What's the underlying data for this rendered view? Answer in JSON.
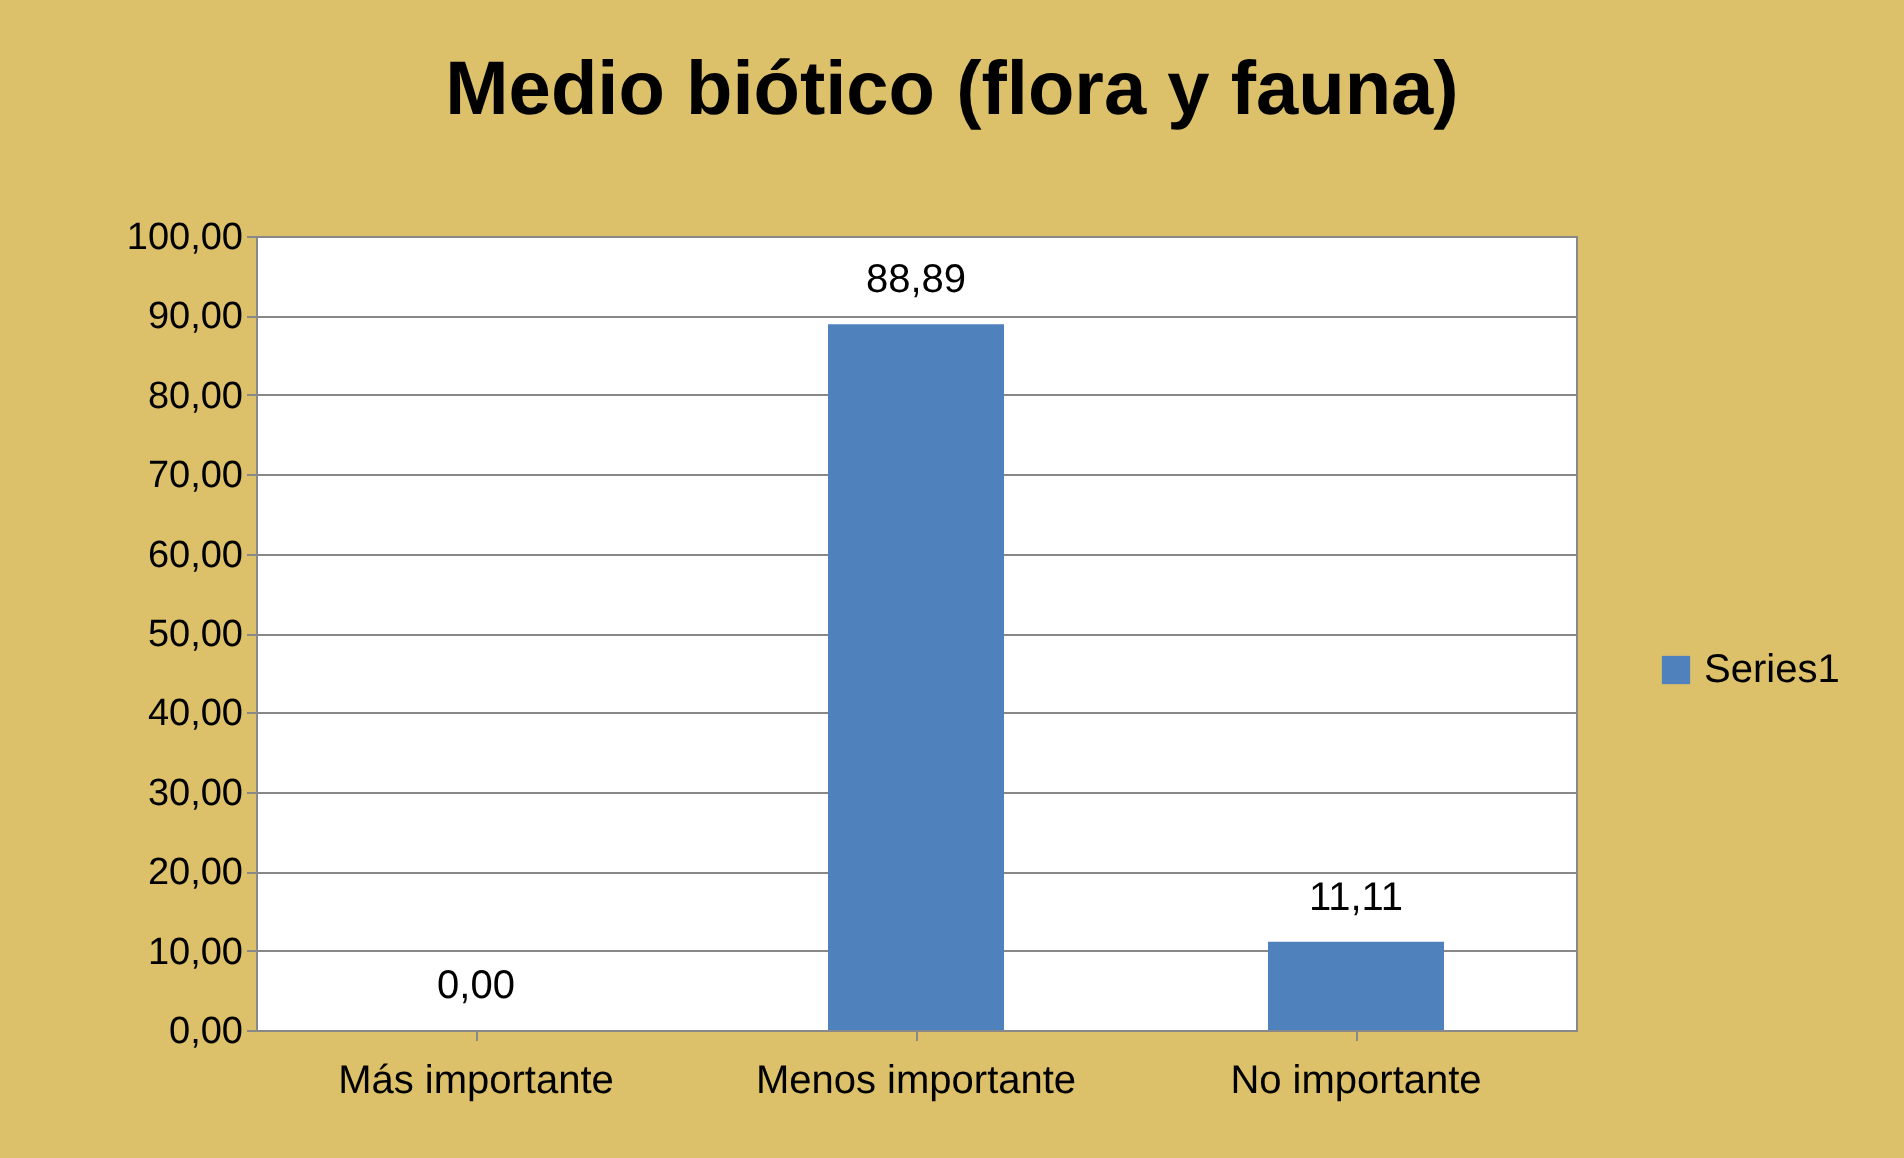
{
  "chart_data": {
    "type": "bar",
    "title": "Medio biótico (flora y fauna)",
    "categories": [
      "Más importante",
      "Menos importante",
      "No importante"
    ],
    "series": [
      {
        "name": "Series1",
        "color": "#4f81bd",
        "values": [
          0,
          88.89,
          11.11
        ],
        "value_labels": [
          "0,00",
          "88,89",
          "11,11"
        ]
      }
    ],
    "ylim": [
      0,
      100
    ],
    "yticks": [
      {
        "value": 0,
        "label": "0,00"
      },
      {
        "value": 10,
        "label": "10,00"
      },
      {
        "value": 20,
        "label": "20,00"
      },
      {
        "value": 30,
        "label": "30,00"
      },
      {
        "value": 40,
        "label": "40,00"
      },
      {
        "value": 50,
        "label": "50,00"
      },
      {
        "value": 60,
        "label": "60,00"
      },
      {
        "value": 70,
        "label": "70,00"
      },
      {
        "value": 80,
        "label": "80,00"
      },
      {
        "value": 90,
        "label": "90,00"
      },
      {
        "value": 100,
        "label": "100,00"
      }
    ],
    "grid": "y",
    "legend": "right"
  }
}
